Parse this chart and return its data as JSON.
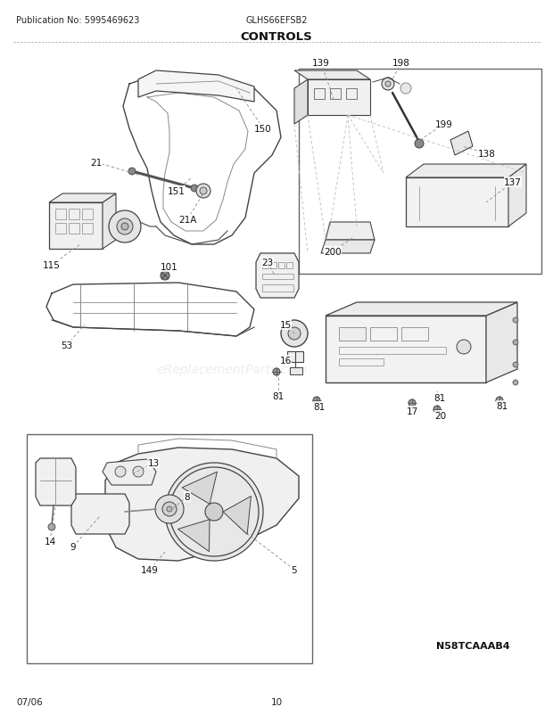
{
  "title": "CONTROLS",
  "pub_no": "Publication No: 5995469623",
  "model": "GLHS66EFSB2",
  "diagram_code": "N58TCAAAB4",
  "date": "07/06",
  "page": "10",
  "bg_color": "#ffffff",
  "lc": "#444444",
  "lc_light": "#888888",
  "lc_vlight": "#bbbbbb",
  "label_fontsize": 7.5,
  "watermark": "eReplacementParts.com",
  "watermark_alpha": 0.35
}
